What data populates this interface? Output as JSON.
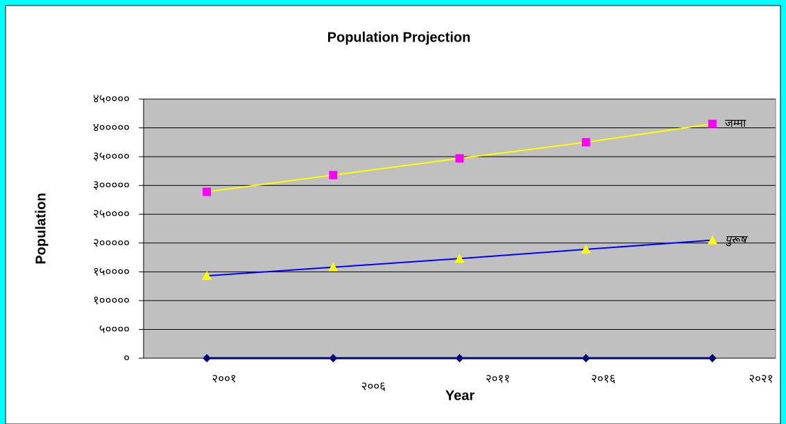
{
  "chart_data": {
    "type": "line",
    "title": "Population Projection",
    "x_label": "Year",
    "y_label": "Population",
    "categories": [
      "२००१",
      "२००६",
      "२०११",
      "२०१६",
      "२०२१"
    ],
    "series": [
      {
        "name": "जम्मा",
        "color": "#ffff00",
        "marker_color": "#ff00ff",
        "marker": "square",
        "values": [
          289000,
          318000,
          347000,
          375000,
          407000
        ]
      },
      {
        "name": "पुरूष",
        "color": "#0000ff",
        "marker_color": "#ffff00",
        "marker": "triangle",
        "values": [
          143000,
          158000,
          173000,
          189000,
          205000
        ]
      },
      {
        "color": "#000080",
        "marker_color": "#000080",
        "marker": "diamond",
        "values": [
          0,
          0,
          0,
          0,
          0
        ]
      }
    ],
    "ylim": [
      0,
      450000
    ],
    "yticks": [
      {
        "value": 0,
        "label": "०"
      },
      {
        "value": 50000,
        "label": "५००००"
      },
      {
        "value": 100000,
        "label": "१०००००"
      },
      {
        "value": 150000,
        "label": "१५००००"
      },
      {
        "value": 200000,
        "label": "२०००००"
      },
      {
        "value": 250000,
        "label": "२५००००"
      },
      {
        "value": 300000,
        "label": "३०००००"
      },
      {
        "value": 350000,
        "label": "३५००००"
      },
      {
        "value": 400000,
        "label": "४०००००"
      },
      {
        "value": 450000,
        "label": "४५००००"
      }
    ],
    "grid": true,
    "plot_background": "#c0c0c0"
  }
}
